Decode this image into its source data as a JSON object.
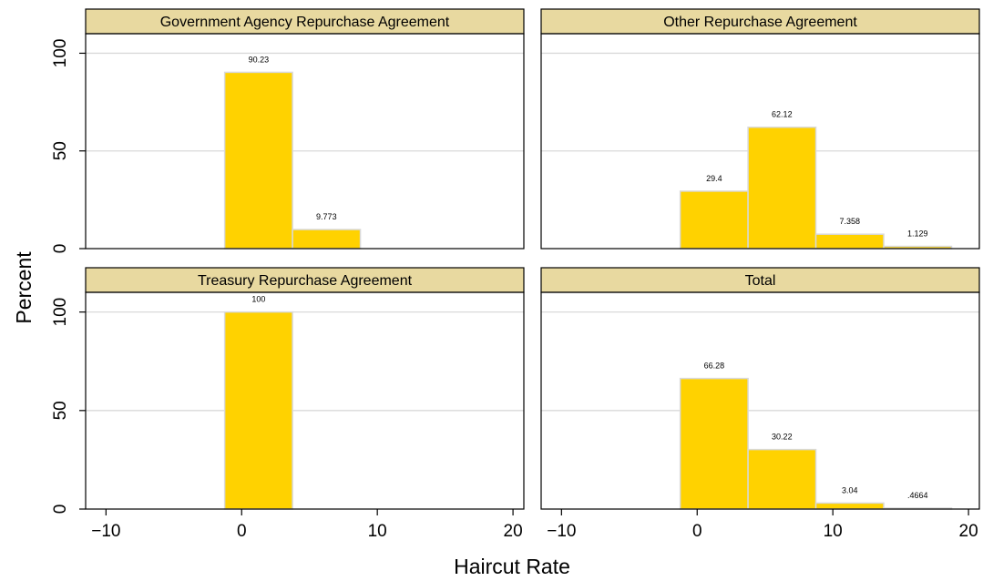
{
  "chart_data": {
    "type": "bar",
    "xlabel": "Haircut Rate",
    "ylabel": "Percent",
    "xlim": [
      -11.5,
      20.8
    ],
    "ylim": [
      0,
      110
    ],
    "xticks": [
      -10,
      0,
      10,
      20
    ],
    "yticks": [
      0,
      50,
      100
    ],
    "bin_width": 5,
    "grid": true,
    "panels": [
      {
        "title": "Government Agency Repurchase Agreement",
        "bars": [
          {
            "x0": -1.25,
            "x1": 3.75,
            "value": 90.23,
            "label": "90.23"
          },
          {
            "x0": 3.75,
            "x1": 8.75,
            "value": 9.773,
            "label": "9.773"
          }
        ]
      },
      {
        "title": "Other Repurchase Agreement",
        "bars": [
          {
            "x0": -1.25,
            "x1": 3.75,
            "value": 29.4,
            "label": "29.4"
          },
          {
            "x0": 3.75,
            "x1": 8.75,
            "value": 62.12,
            "label": "62.12"
          },
          {
            "x0": 8.75,
            "x1": 13.75,
            "value": 7.358,
            "label": "7.358"
          },
          {
            "x0": 13.75,
            "x1": 18.75,
            "value": 1.129,
            "label": "1.129"
          }
        ]
      },
      {
        "title": "Treasury Repurchase Agreement",
        "bars": [
          {
            "x0": -1.25,
            "x1": 3.75,
            "value": 100,
            "label": "100"
          }
        ]
      },
      {
        "title": "Total",
        "bars": [
          {
            "x0": -1.25,
            "x1": 3.75,
            "value": 66.28,
            "label": "66.28"
          },
          {
            "x0": 3.75,
            "x1": 8.75,
            "value": 30.22,
            "label": "30.22"
          },
          {
            "x0": 8.75,
            "x1": 13.75,
            "value": 3.04,
            "label": "3.04"
          },
          {
            "x0": 13.75,
            "x1": 18.75,
            "value": 0.4664,
            "label": ".4664"
          }
        ]
      }
    ]
  }
}
